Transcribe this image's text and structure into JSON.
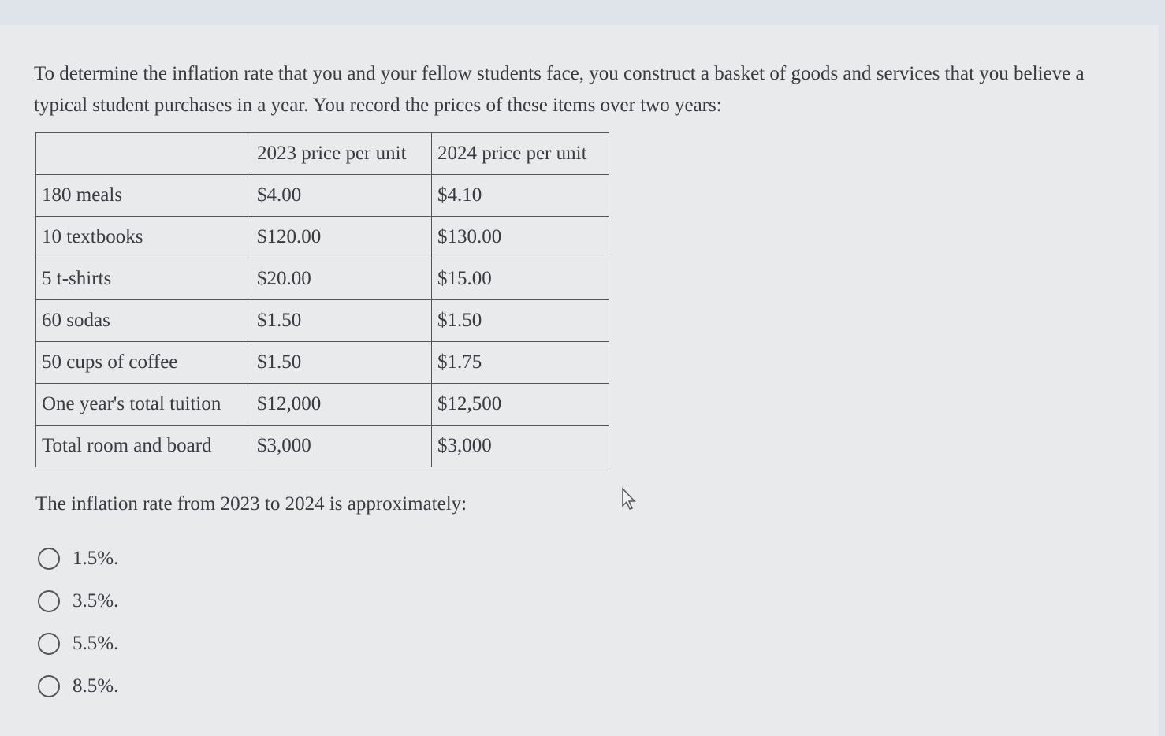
{
  "question": "To determine the inflation rate that you and your fellow students face, you construct a basket of goods and services that you believe a typical student purchases in a year. You record the prices of these items over two years:",
  "table": {
    "headers": [
      "",
      "2023 price per unit",
      "2024 price per unit"
    ],
    "rows": [
      [
        "180 meals",
        "$4.00",
        "$4.10"
      ],
      [
        "10 textbooks",
        "$120.00",
        "$130.00"
      ],
      [
        "5 t-shirts",
        "$20.00",
        "$15.00"
      ],
      [
        "60 sodas",
        "$1.50",
        "$1.50"
      ],
      [
        "50 cups of coffee",
        "$1.50",
        "$1.75"
      ],
      [
        "One year's total tuition",
        "$12,000",
        "$12,500"
      ],
      [
        "Total room and board",
        "$3,000",
        "$3,000"
      ]
    ]
  },
  "prompt": "The inflation rate from 2023 to 2024 is approximately:",
  "options": [
    "1.5%.",
    "3.5%.",
    "5.5%.",
    "8.5%."
  ],
  "selected_option": null,
  "icons": {
    "cursor": "mouse-pointer-icon",
    "radio": "radio-unchecked-icon"
  }
}
